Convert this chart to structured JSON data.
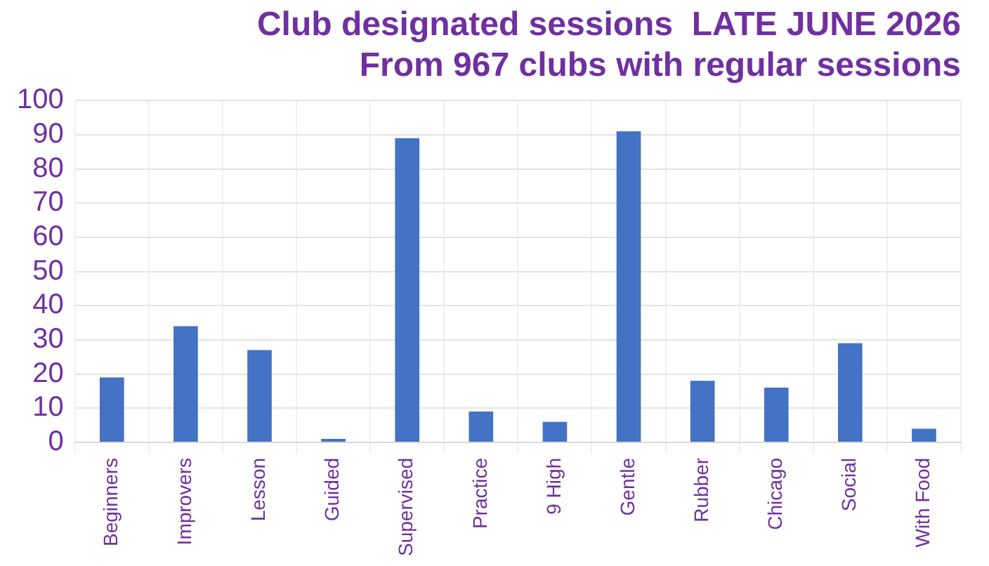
{
  "chart_data": {
    "type": "bar",
    "title": "Club designated sessions  LATE JUNE 2026\nFrom 967 clubs with regular sessions",
    "categories": [
      "Beginners",
      "Improvers",
      "Lesson",
      "Guided",
      "Supervised",
      "Practice",
      "9 High",
      "Gentle",
      "Rubber",
      "Chicago",
      "Social",
      "With Food"
    ],
    "values": [
      19,
      34,
      27,
      1,
      89,
      9,
      6,
      91,
      18,
      16,
      29,
      4
    ],
    "color": "#4472c4",
    "ylim": [
      0,
      100
    ],
    "yticks": [
      0,
      10,
      20,
      30,
      40,
      50,
      60,
      70,
      80,
      90,
      100
    ],
    "grid": true
  }
}
